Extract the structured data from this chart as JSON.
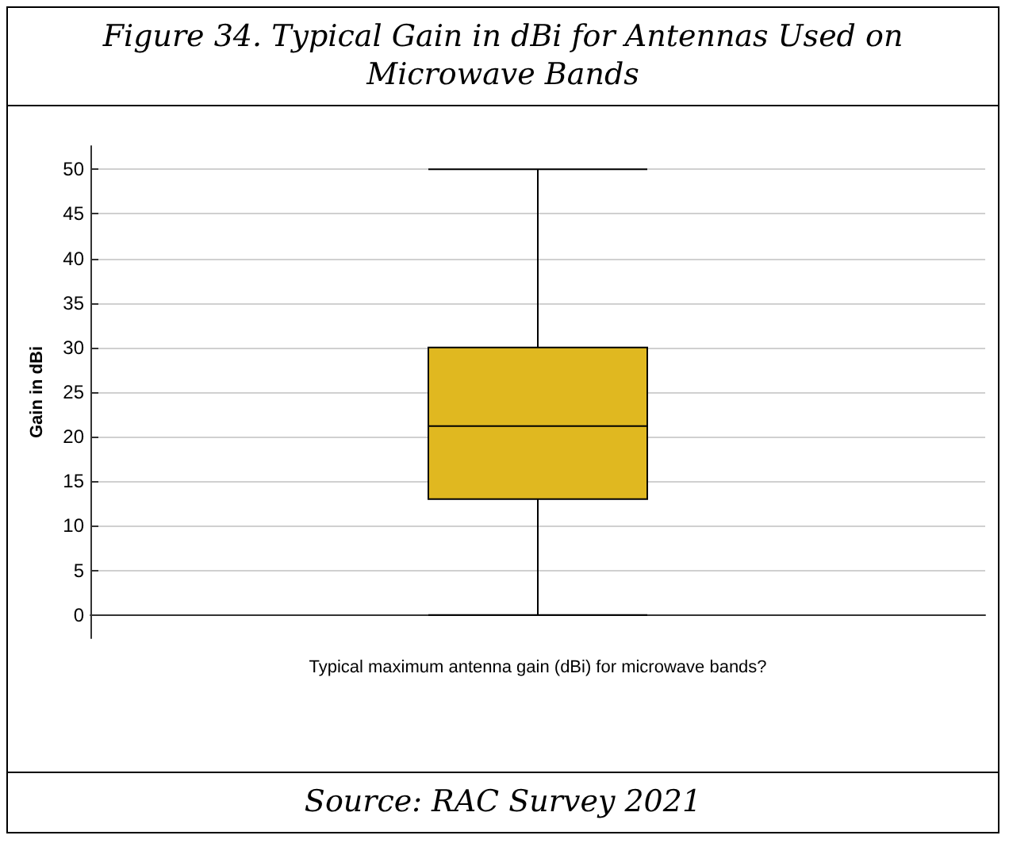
{
  "chart_data": {
    "type": "box",
    "title": "Figure 34. Typical Gain in dBi for Antennas Used on Microwave Bands",
    "ylabel": "Gain in dBi",
    "xlabel": "Typical maximum antenna gain (dBi) for microwave bands?",
    "categories": [
      null
    ],
    "boxes": [
      {
        "low": 0,
        "q1": 13,
        "median": 21.2,
        "q3": 30,
        "high": 50
      }
    ],
    "color": "#e0b820",
    "ylim": [
      -2.6,
      52.6
    ],
    "yticks": [
      0,
      5,
      10,
      15,
      20,
      25,
      30,
      35,
      40,
      45,
      50
    ],
    "grid": "y",
    "annotations": [
      "Source: RAC Survey 2021"
    ]
  }
}
